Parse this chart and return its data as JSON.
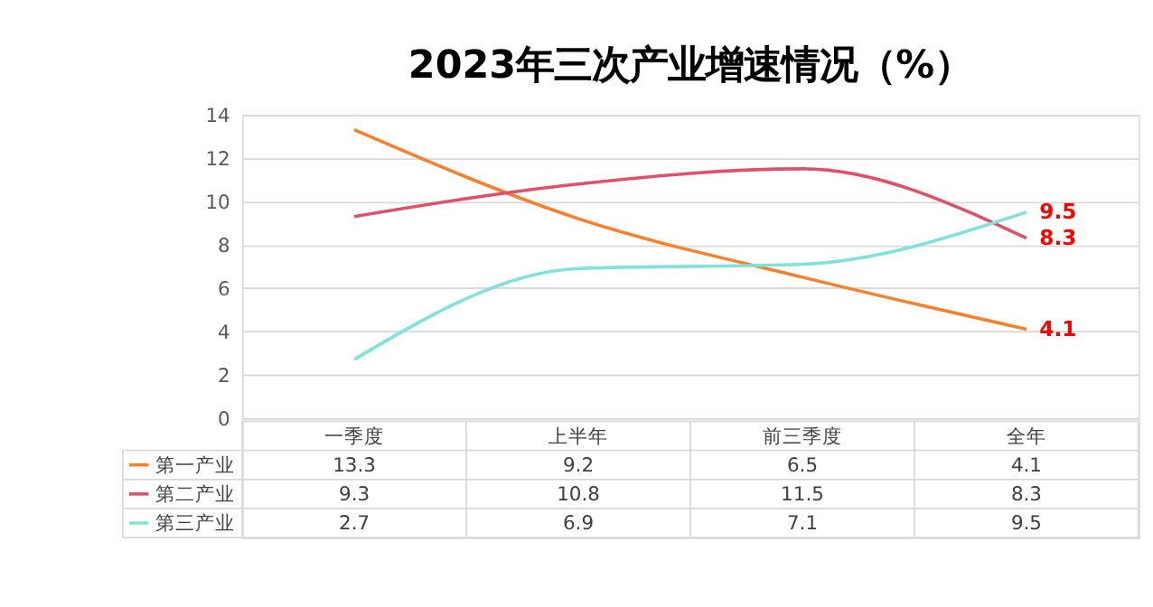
{
  "chart_data": {
    "type": "line",
    "title": "2023年三次产业增速情况（%）",
    "categories": [
      "一季度",
      "上半年",
      "前三季度",
      "全年"
    ],
    "series": [
      {
        "name": "第一产业",
        "color": "#f7812a",
        "values": [
          13.3,
          9.2,
          6.5,
          4.1
        ],
        "value_labels": [
          "13.3",
          "9.2",
          "6.5",
          "4.1"
        ]
      },
      {
        "name": "第二产业",
        "color": "#e0506a",
        "values": [
          9.3,
          10.8,
          11.5,
          8.3
        ],
        "value_labels": [
          "9.3",
          "10.8",
          "11.5",
          "8.3"
        ]
      },
      {
        "name": "第三产业",
        "color": "#7fe3da",
        "values": [
          2.7,
          6.9,
          7.1,
          9.5
        ],
        "value_labels": [
          "2.7",
          "6.9",
          "7.1",
          "9.5"
        ]
      }
    ],
    "ylim": [
      0,
      14
    ],
    "yticks": [
      0,
      2,
      4,
      6,
      8,
      10,
      12,
      14
    ],
    "grid": "y",
    "legend": "bottom",
    "data_labels": true,
    "marker": "none",
    "line_style": "solid"
  }
}
